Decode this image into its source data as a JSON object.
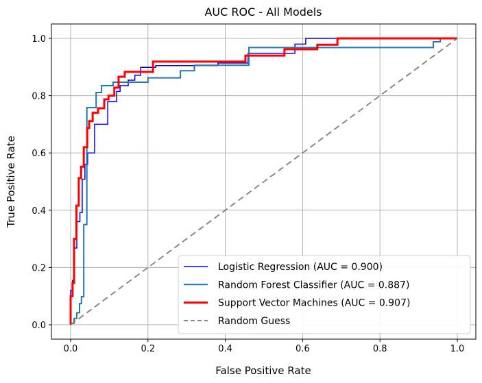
{
  "chart_data": {
    "type": "line",
    "title": "AUC ROC - All Models",
    "xlabel": "False Positive Rate",
    "ylabel": "True Positive Rate",
    "xticks": [
      "0.0",
      "0.2",
      "0.4",
      "0.6",
      "0.8",
      "1.0"
    ],
    "yticks": [
      "0.0",
      "0.2",
      "0.4",
      "0.6",
      "0.8",
      "1.0"
    ],
    "xlim": [
      -0.05,
      1.05
    ],
    "ylim": [
      -0.05,
      1.05
    ],
    "grid": true,
    "grid_color": "#b0b0b0",
    "spine_color": "#000000",
    "legend_position": "lower right",
    "legend_border_color": "#cccccc",
    "series": [
      {
        "name": "logistic-regression",
        "label": "Logistic Regression (AUC = 0.900)",
        "auc": 0.9,
        "color": "#0000ff",
        "width": 1.5,
        "dash": "",
        "step": true,
        "points": [
          [
            0,
            0
          ],
          [
            0.005,
            0.12
          ],
          [
            0.009,
            0.155
          ],
          [
            0.016,
            0.268
          ],
          [
            0.024,
            0.36
          ],
          [
            0.03,
            0.392
          ],
          [
            0.037,
            0.508
          ],
          [
            0.044,
            0.56
          ],
          [
            0.062,
            0.6
          ],
          [
            0.096,
            0.7
          ],
          [
            0.119,
            0.779
          ],
          [
            0.128,
            0.815
          ],
          [
            0.149,
            0.835
          ],
          [
            0.166,
            0.854
          ],
          [
            0.181,
            0.871
          ],
          [
            0.22,
            0.899
          ],
          [
            0.381,
            0.905
          ],
          [
            0.459,
            0.914
          ],
          [
            0.58,
            0.948
          ],
          [
            0.608,
            0.98
          ],
          [
            1.0,
            1.0
          ]
        ]
      },
      {
        "name": "random-forest-classifier",
        "label": "Random Forest Classifier (AUC = 0.887)",
        "auc": 0.887,
        "color": "#1f77b4",
        "width": 2.0,
        "dash": "",
        "step": true,
        "points": [
          [
            0,
            0
          ],
          [
            0.009,
            0.005
          ],
          [
            0.016,
            0.022
          ],
          [
            0.023,
            0.042
          ],
          [
            0.028,
            0.074
          ],
          [
            0.034,
            0.098
          ],
          [
            0.042,
            0.35
          ],
          [
            0.066,
            0.758
          ],
          [
            0.08,
            0.811
          ],
          [
            0.11,
            0.835
          ],
          [
            0.2,
            0.847
          ],
          [
            0.284,
            0.862
          ],
          [
            0.32,
            0.887
          ],
          [
            0.461,
            0.906
          ],
          [
            0.938,
            0.968
          ],
          [
            0.956,
            0.988
          ],
          [
            1.0,
            1.0
          ]
        ]
      },
      {
        "name": "support-vector-machines",
        "label": "Support Vector Machines (AUC = 0.907)",
        "auc": 0.907,
        "color": "#ff0000",
        "width": 3.0,
        "dash": "",
        "step": true,
        "points": [
          [
            0,
            0
          ],
          [
            0.005,
            0.1
          ],
          [
            0.009,
            0.146
          ],
          [
            0.015,
            0.3
          ],
          [
            0.021,
            0.416
          ],
          [
            0.027,
            0.512
          ],
          [
            0.034,
            0.552
          ],
          [
            0.043,
            0.62
          ],
          [
            0.048,
            0.687
          ],
          [
            0.057,
            0.711
          ],
          [
            0.071,
            0.74
          ],
          [
            0.087,
            0.756
          ],
          [
            0.098,
            0.787
          ],
          [
            0.113,
            0.8
          ],
          [
            0.124,
            0.828
          ],
          [
            0.14,
            0.866
          ],
          [
            0.213,
            0.883
          ],
          [
            0.452,
            0.919
          ],
          [
            0.553,
            0.94
          ],
          [
            0.638,
            0.962
          ],
          [
            0.69,
            0.978
          ],
          [
            1.0,
            1.0
          ]
        ]
      },
      {
        "name": "random-guess",
        "label": "Random Guess",
        "color": "#7f7f7f",
        "width": 1.8,
        "dash": "9,5.5",
        "step": false,
        "points": [
          [
            0,
            0
          ],
          [
            1,
            1
          ]
        ]
      }
    ]
  }
}
